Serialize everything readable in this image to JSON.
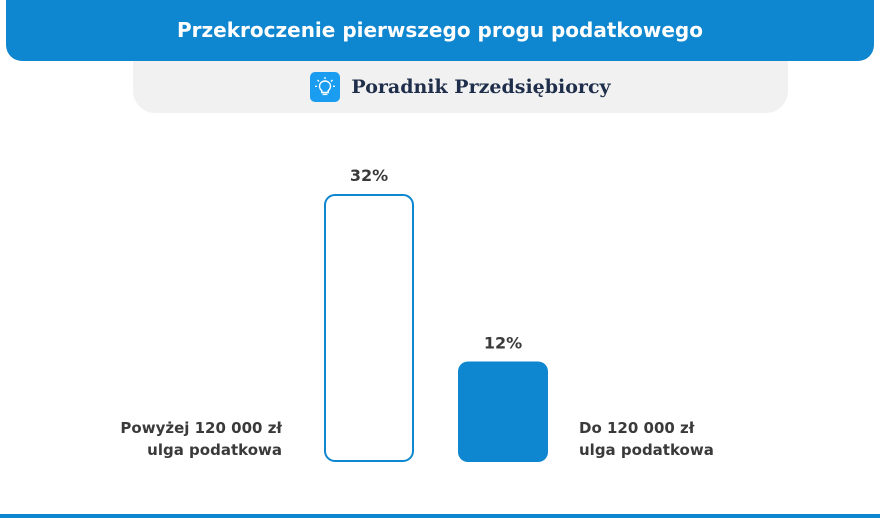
{
  "header": {
    "title": "Przekroczenie pierwszego progu podatkowego"
  },
  "brand": {
    "name": "Poradnik Przedsiębiorcy",
    "icon": "lightbulb-icon"
  },
  "colors": {
    "accent": "#0f86d0",
    "icon_bg": "#1a9df0",
    "brand_text": "#1f2e4a"
  },
  "chart_data": {
    "type": "bar",
    "categories": [
      "Powyżej 120 000 zł ulga podatkowa",
      "Do 120 000 zł ulga podatkowa"
    ],
    "category_lines": [
      [
        "Powyżej 120 000 zł",
        "ulga podatkowa"
      ],
      [
        "Do 120 000 zł",
        "ulga podatkowa"
      ]
    ],
    "values": [
      32,
      12
    ],
    "value_labels": [
      "32%",
      "12%"
    ],
    "bar_styles": [
      "outline",
      "filled"
    ],
    "title": "Przekroczenie pierwszego progu podatkowego",
    "xlabel": "",
    "ylabel": "",
    "ylim": [
      0,
      32
    ],
    "grid": false
  }
}
